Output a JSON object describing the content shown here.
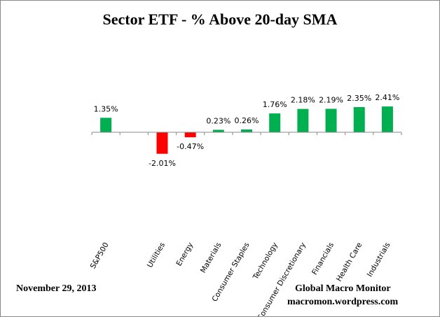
{
  "chart_data": {
    "type": "bar",
    "title": "Sector ETF - % Above 20-day SMA",
    "categories": [
      "S&P500",
      "",
      "Utilities",
      "Energy",
      "Materials",
      "Consumer Staples",
      "Technology",
      "Consumer Discretionary",
      "Financials",
      "Health Care",
      "Industrials"
    ],
    "values": [
      1.35,
      null,
      -2.01,
      -0.47,
      0.23,
      0.26,
      1.76,
      2.18,
      2.19,
      2.35,
      2.41
    ],
    "data_labels": [
      "1.35%",
      "",
      "-2.01%",
      "-0.47%",
      "0.23%",
      "0.26%",
      "1.76%",
      "2.18%",
      "2.19%",
      "2.35%",
      "2.41%"
    ],
    "xlabel": "",
    "ylabel": "",
    "grid": false,
    "colors": {
      "positive": "#00b050",
      "negative": "#ff0000"
    }
  },
  "footer": {
    "date": "November 29, 2013",
    "source_name": "Global Macro Monitor",
    "source_url": "macromon.wordpress.com"
  }
}
